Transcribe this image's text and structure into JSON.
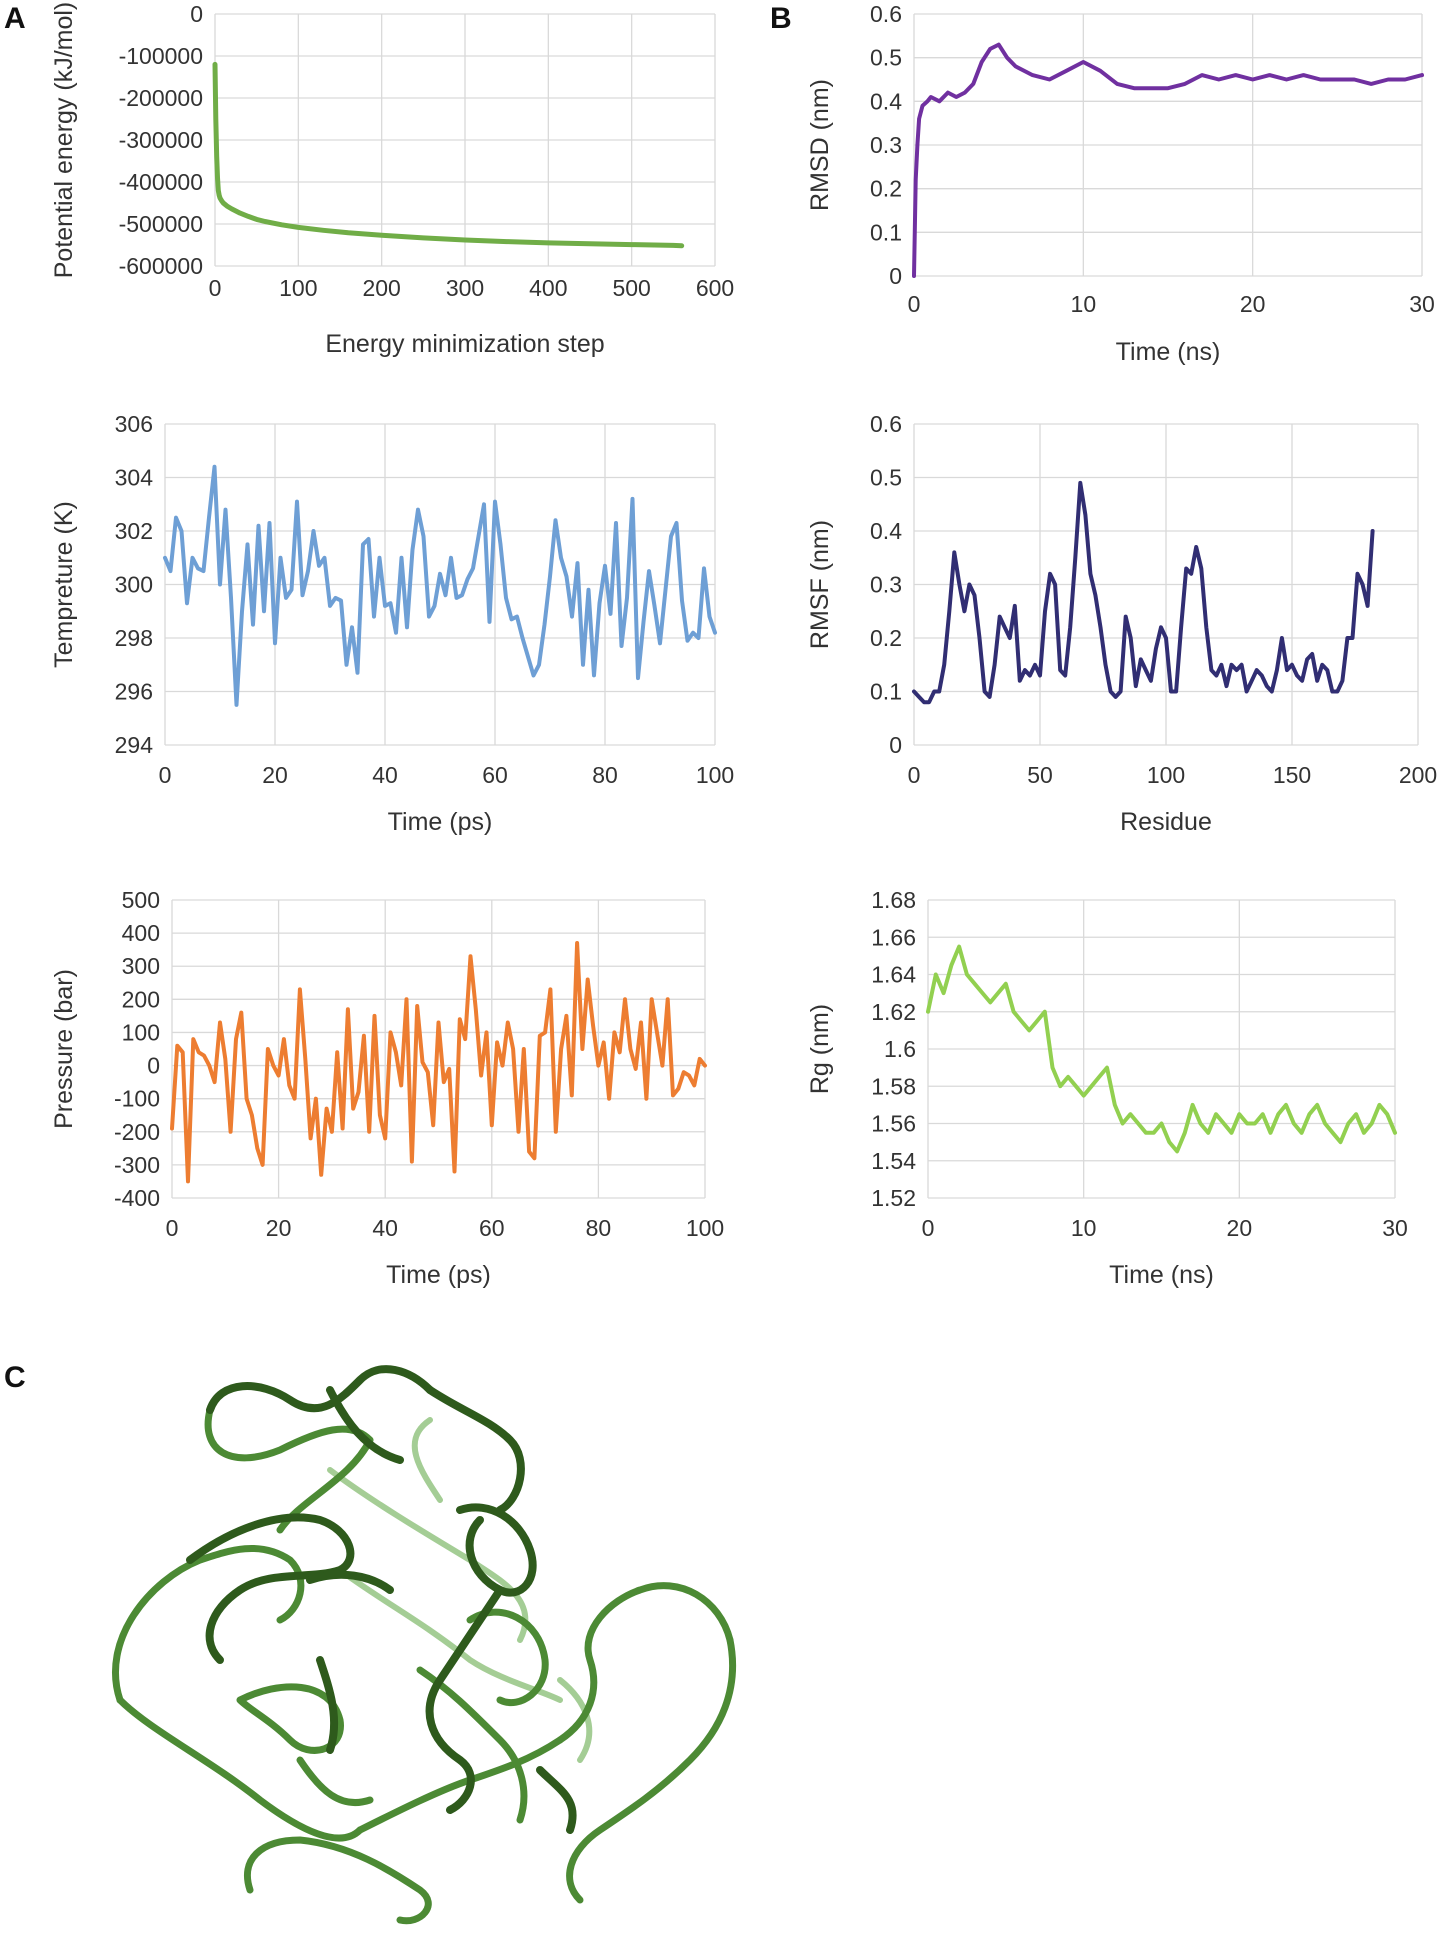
{
  "panel_letters": [
    "A",
    "B",
    "C"
  ],
  "chart_data": [
    {
      "id": "energy",
      "type": "line",
      "xlabel": "Energy minimization step",
      "ylabel": "Potential energy (kJ/mol)",
      "xlim": [
        0,
        600
      ],
      "ylim": [
        -600000,
        0
      ],
      "xticks": [
        0,
        100,
        200,
        300,
        400,
        500,
        600
      ],
      "yticks": [
        0,
        -100000,
        -200000,
        -300000,
        -400000,
        -500000,
        -600000
      ],
      "grid": true,
      "color": "#70AD47",
      "series": [
        {
          "x": [
            0,
            1,
            2,
            3,
            4,
            5,
            6,
            8,
            10,
            15,
            20,
            30,
            40,
            50,
            60,
            80,
            100,
            130,
            160,
            200,
            250,
            300,
            350,
            400,
            450,
            500,
            550,
            560
          ],
          "values": [
            -120000,
            -250000,
            -340000,
            -390000,
            -420000,
            -432000,
            -438000,
            -445000,
            -450000,
            -458000,
            -464000,
            -474000,
            -482000,
            -489000,
            -494000,
            -502000,
            -508000,
            -515000,
            -521000,
            -527000,
            -533000,
            -538000,
            -542000,
            -545000,
            -547000,
            -549000,
            -551000,
            -552000
          ]
        }
      ]
    },
    {
      "id": "rmsd",
      "type": "line",
      "xlabel": "Time (ns)",
      "ylabel": "RMSD (nm)",
      "xlim": [
        0,
        30
      ],
      "ylim": [
        0,
        0.6
      ],
      "xticks": [
        0,
        10,
        20,
        30
      ],
      "yticks": [
        0,
        0.1,
        0.2,
        0.3,
        0.4,
        0.5,
        0.6
      ],
      "grid": true,
      "color": "#7030A0",
      "series": [
        {
          "x": [
            0,
            0.1,
            0.2,
            0.3,
            0.5,
            0.8,
            1,
            1.5,
            2,
            2.5,
            3,
            3.5,
            4,
            4.5,
            5,
            5.5,
            6,
            7,
            8,
            9,
            10,
            11,
            12,
            13,
            14,
            15,
            16,
            17,
            18,
            19,
            20,
            21,
            22,
            23,
            24,
            25,
            26,
            27,
            28,
            29,
            30
          ],
          "values": [
            0,
            0.22,
            0.3,
            0.36,
            0.39,
            0.4,
            0.41,
            0.4,
            0.42,
            0.41,
            0.42,
            0.44,
            0.49,
            0.52,
            0.53,
            0.5,
            0.48,
            0.46,
            0.45,
            0.47,
            0.49,
            0.47,
            0.44,
            0.43,
            0.43,
            0.43,
            0.44,
            0.46,
            0.45,
            0.46,
            0.45,
            0.46,
            0.45,
            0.46,
            0.45,
            0.45,
            0.45,
            0.44,
            0.45,
            0.45,
            0.46
          ]
        }
      ]
    },
    {
      "id": "temperature",
      "type": "line",
      "xlabel": "Time (ps)",
      "ylabel": "Tempreture (K)",
      "xlim": [
        0,
        100
      ],
      "ylim": [
        294,
        306
      ],
      "xticks": [
        0,
        20,
        40,
        60,
        80,
        100
      ],
      "yticks": [
        294,
        296,
        298,
        300,
        302,
        304,
        306
      ],
      "grid": true,
      "color": "#6E9FD5",
      "series": [
        {
          "x": [
            0,
            1,
            2,
            3,
            4,
            5,
            6,
            7,
            8,
            9,
            10,
            11,
            12,
            13,
            14,
            15,
            16,
            17,
            18,
            19,
            20,
            21,
            22,
            23,
            24,
            25,
            26,
            27,
            28,
            29,
            30,
            31,
            32,
            33,
            34,
            35,
            36,
            37,
            38,
            39,
            40,
            41,
            42,
            43,
            44,
            45,
            46,
            47,
            48,
            49,
            50,
            51,
            52,
            53,
            54,
            55,
            56,
            57,
            58,
            59,
            60,
            61,
            62,
            63,
            64,
            65,
            66,
            67,
            68,
            69,
            70,
            71,
            72,
            73,
            74,
            75,
            76,
            77,
            78,
            79,
            80,
            81,
            82,
            83,
            84,
            85,
            86,
            87,
            88,
            89,
            90,
            91,
            92,
            93,
            94,
            95,
            96,
            97,
            98,
            99,
            100
          ],
          "values": [
            301,
            300.5,
            302.5,
            302,
            299.3,
            301,
            300.6,
            300.5,
            302.5,
            304.4,
            300,
            302.8,
            299.5,
            295.5,
            299,
            301.5,
            298.5,
            302.2,
            299,
            302.3,
            297.8,
            301,
            299.5,
            299.8,
            303.1,
            299.6,
            300.5,
            302,
            300.7,
            301,
            299.2,
            299.5,
            299.4,
            297,
            298.4,
            296.7,
            301.5,
            301.7,
            298.8,
            301,
            299.2,
            299.3,
            298.2,
            301,
            298.4,
            301.3,
            302.8,
            301.8,
            298.8,
            299.2,
            300.4,
            299.6,
            301,
            299.5,
            299.6,
            300.2,
            300.6,
            301.8,
            303,
            298.6,
            303.1,
            301.5,
            299.5,
            298.7,
            298.8,
            298,
            297.3,
            296.6,
            297,
            298.5,
            300.3,
            302.4,
            301,
            300.3,
            298.8,
            300.8,
            297,
            299.8,
            296.6,
            299.3,
            300.7,
            298.9,
            302.3,
            297.7,
            299.5,
            303.2,
            296.5,
            298.6,
            300.5,
            299.2,
            297.8,
            299.8,
            301.8,
            302.3,
            299.4,
            297.9,
            298.2,
            298,
            300.6,
            298.8,
            298.2
          ]
        }
      ]
    },
    {
      "id": "rmsf",
      "type": "line",
      "xlabel": "Residue",
      "ylabel": "RMSF (nm)",
      "xlim": [
        0,
        200
      ],
      "ylim": [
        0,
        0.6
      ],
      "xticks": [
        0,
        50,
        100,
        150,
        200
      ],
      "yticks": [
        0,
        0.1,
        0.2,
        0.3,
        0.4,
        0.5,
        0.6
      ],
      "grid": true,
      "color": "#312E73",
      "series": [
        {
          "x": [
            0,
            2,
            4,
            6,
            8,
            10,
            12,
            14,
            16,
            18,
            20,
            22,
            24,
            26,
            28,
            30,
            32,
            34,
            36,
            38,
            40,
            42,
            44,
            46,
            48,
            50,
            52,
            54,
            56,
            58,
            60,
            62,
            64,
            66,
            68,
            70,
            72,
            74,
            76,
            78,
            80,
            82,
            84,
            86,
            88,
            90,
            92,
            94,
            96,
            98,
            100,
            102,
            104,
            106,
            108,
            110,
            112,
            114,
            116,
            118,
            120,
            122,
            124,
            126,
            128,
            130,
            132,
            134,
            136,
            138,
            140,
            142,
            144,
            146,
            148,
            150,
            152,
            154,
            156,
            158,
            160,
            162,
            164,
            166,
            168,
            170,
            172,
            174,
            176,
            178,
            180,
            182
          ],
          "values": [
            0.1,
            0.09,
            0.08,
            0.08,
            0.1,
            0.1,
            0.15,
            0.25,
            0.36,
            0.3,
            0.25,
            0.3,
            0.28,
            0.2,
            0.1,
            0.09,
            0.15,
            0.24,
            0.22,
            0.2,
            0.26,
            0.12,
            0.14,
            0.13,
            0.15,
            0.13,
            0.25,
            0.32,
            0.3,
            0.14,
            0.13,
            0.22,
            0.35,
            0.49,
            0.43,
            0.32,
            0.28,
            0.22,
            0.15,
            0.1,
            0.09,
            0.1,
            0.24,
            0.2,
            0.11,
            0.16,
            0.14,
            0.12,
            0.18,
            0.22,
            0.2,
            0.1,
            0.1,
            0.22,
            0.33,
            0.32,
            0.37,
            0.33,
            0.22,
            0.14,
            0.13,
            0.15,
            0.11,
            0.15,
            0.14,
            0.15,
            0.1,
            0.12,
            0.14,
            0.13,
            0.11,
            0.1,
            0.14,
            0.2,
            0.14,
            0.15,
            0.13,
            0.12,
            0.16,
            0.17,
            0.12,
            0.15,
            0.14,
            0.1,
            0.1,
            0.12,
            0.2,
            0.2,
            0.32,
            0.3,
            0.26,
            0.4
          ]
        }
      ]
    },
    {
      "id": "pressure",
      "type": "line",
      "xlabel": "Time (ps)",
      "ylabel": "Pressure (bar)",
      "xlim": [
        0,
        100
      ],
      "ylim": [
        -400,
        500
      ],
      "xticks": [
        0,
        20,
        40,
        60,
        80,
        100
      ],
      "yticks": [
        -400,
        -300,
        -200,
        -100,
        0,
        100,
        200,
        300,
        400,
        500
      ],
      "grid": true,
      "color": "#ED7D31",
      "series": [
        {
          "x": [
            0,
            1,
            2,
            3,
            4,
            5,
            6,
            7,
            8,
            9,
            10,
            11,
            12,
            13,
            14,
            15,
            16,
            17,
            18,
            19,
            20,
            21,
            22,
            23,
            24,
            25,
            26,
            27,
            28,
            29,
            30,
            31,
            32,
            33,
            34,
            35,
            36,
            37,
            38,
            39,
            40,
            41,
            42,
            43,
            44,
            45,
            46,
            47,
            48,
            49,
            50,
            51,
            52,
            53,
            54,
            55,
            56,
            57,
            58,
            59,
            60,
            61,
            62,
            63,
            64,
            65,
            66,
            67,
            68,
            69,
            70,
            71,
            72,
            73,
            74,
            75,
            76,
            77,
            78,
            79,
            80,
            81,
            82,
            83,
            84,
            85,
            86,
            87,
            88,
            89,
            90,
            91,
            92,
            93,
            94,
            95,
            96,
            97,
            98,
            99,
            100
          ],
          "values": [
            -190,
            60,
            40,
            -350,
            80,
            40,
            30,
            0,
            -50,
            130,
            20,
            -200,
            80,
            160,
            -100,
            -150,
            -250,
            -300,
            50,
            0,
            -30,
            80,
            -60,
            -100,
            230,
            20,
            -220,
            -100,
            -330,
            -130,
            -200,
            40,
            -190,
            170,
            -130,
            -80,
            90,
            -200,
            150,
            -150,
            -220,
            100,
            40,
            -60,
            200,
            -290,
            180,
            10,
            -20,
            -180,
            130,
            -50,
            -10,
            -320,
            140,
            80,
            330,
            170,
            -30,
            100,
            -180,
            70,
            0,
            130,
            50,
            -200,
            50,
            -260,
            -280,
            90,
            100,
            230,
            -200,
            50,
            150,
            -90,
            370,
            50,
            260,
            120,
            0,
            70,
            -100,
            100,
            40,
            200,
            50,
            -10,
            130,
            -100,
            200,
            100,
            0,
            200,
            -90,
            -70,
            -20,
            -30,
            -60,
            20,
            0
          ]
        }
      ]
    },
    {
      "id": "rg",
      "type": "line",
      "xlabel": "Time (ns)",
      "ylabel": "Rg (nm)",
      "xlim": [
        0,
        30
      ],
      "ylim": [
        1.52,
        1.68
      ],
      "xticks": [
        0,
        10,
        20,
        30
      ],
      "yticks": [
        1.52,
        1.54,
        1.56,
        1.58,
        1.6,
        1.62,
        1.64,
        1.66,
        1.68
      ],
      "grid": true,
      "color": "#92D050",
      "series": [
        {
          "x": [
            0,
            0.5,
            1,
            1.5,
            2,
            2.5,
            3,
            3.5,
            4,
            4.5,
            5,
            5.5,
            6,
            6.5,
            7,
            7.5,
            8,
            8.5,
            9,
            9.5,
            10,
            10.5,
            11,
            11.5,
            12,
            12.5,
            13,
            13.5,
            14,
            14.5,
            15,
            15.5,
            16,
            16.5,
            17,
            17.5,
            18,
            18.5,
            19,
            19.5,
            20,
            20.5,
            21,
            21.5,
            22,
            22.5,
            23,
            23.5,
            24,
            24.5,
            25,
            25.5,
            26,
            26.5,
            27,
            27.5,
            28,
            28.5,
            29,
            29.5,
            30
          ],
          "values": [
            1.62,
            1.64,
            1.63,
            1.645,
            1.655,
            1.64,
            1.635,
            1.63,
            1.625,
            1.63,
            1.635,
            1.62,
            1.615,
            1.61,
            1.615,
            1.62,
            1.59,
            1.58,
            1.585,
            1.58,
            1.575,
            1.58,
            1.585,
            1.59,
            1.57,
            1.56,
            1.565,
            1.56,
            1.555,
            1.555,
            1.56,
            1.55,
            1.545,
            1.555,
            1.57,
            1.56,
            1.555,
            1.565,
            1.56,
            1.555,
            1.565,
            1.56,
            1.56,
            1.565,
            1.555,
            1.565,
            1.57,
            1.56,
            1.555,
            1.565,
            1.57,
            1.56,
            1.555,
            1.55,
            1.56,
            1.565,
            1.555,
            1.56,
            1.57,
            1.565,
            1.555
          ]
        }
      ]
    }
  ],
  "structure": {
    "image": "protein-ribbon-structure",
    "color_dark": "#2E5A1C",
    "color_mid": "#4C8A34",
    "color_light": "#9BC88A"
  }
}
